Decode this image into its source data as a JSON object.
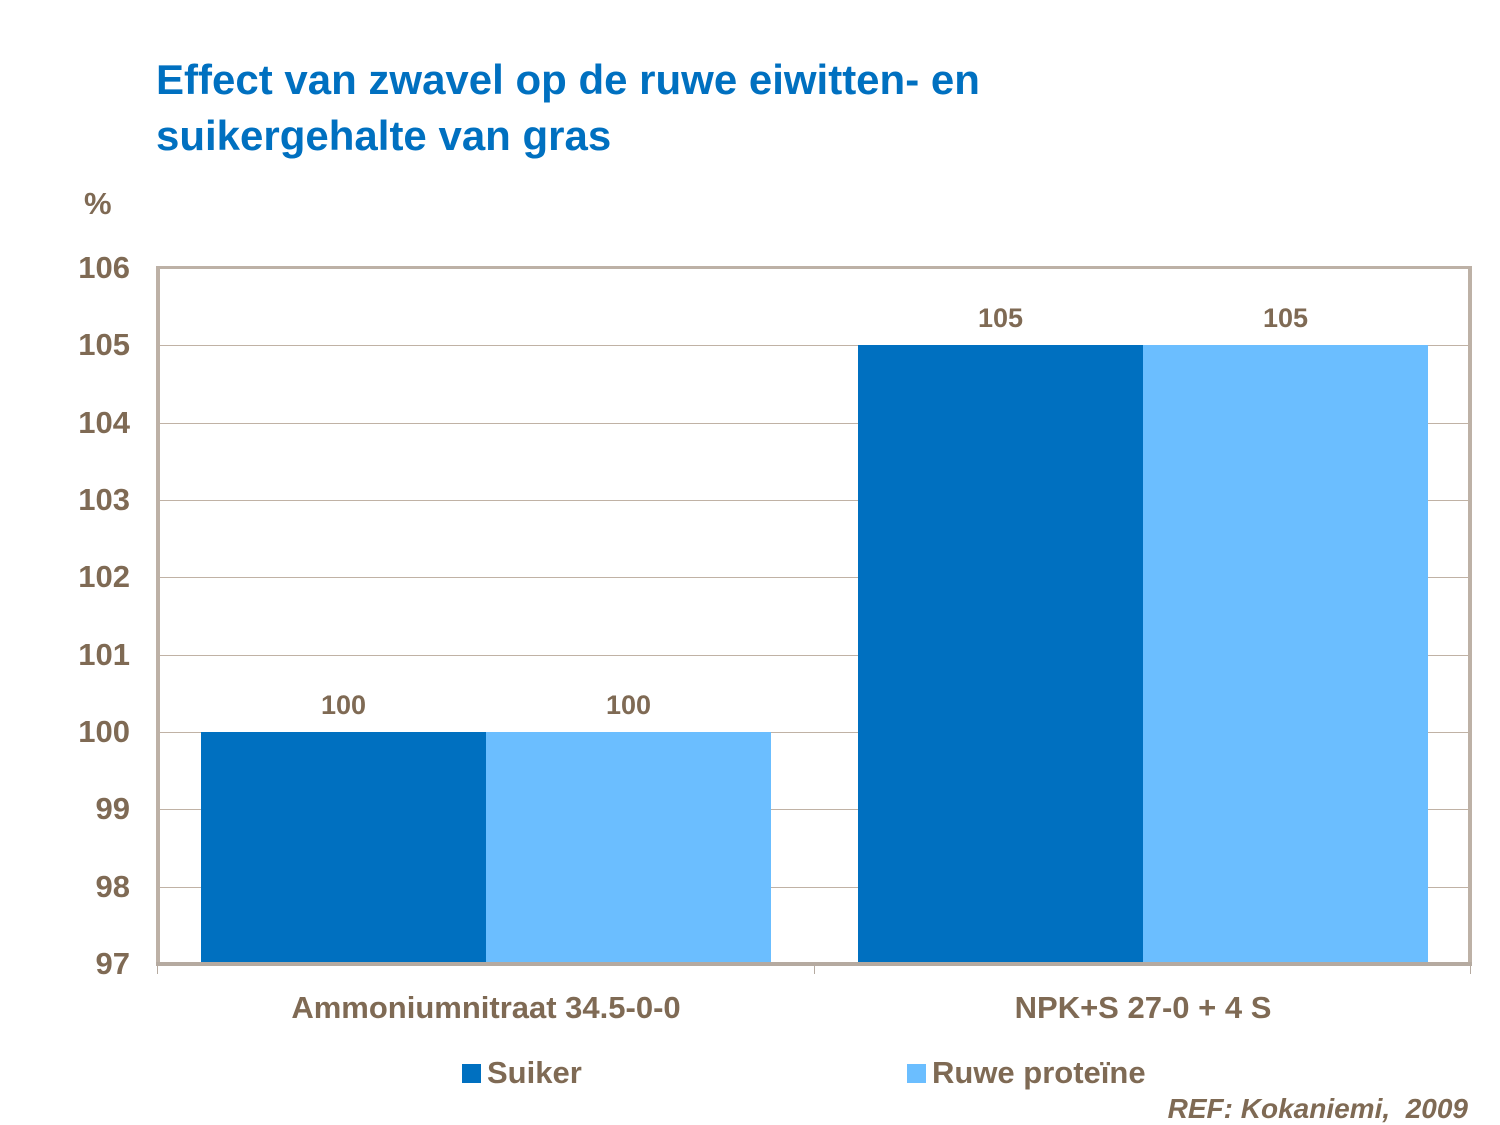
{
  "title": {
    "line1": "Effect van zwavel op de ruwe eiwitten- en",
    "line2": "suikergehalte van gras"
  },
  "y_unit": "%",
  "colors": {
    "suiker": "#0070c0",
    "ruwe_proteine": "#6bbeff",
    "text": "#7f6a54",
    "title": "#0070c0",
    "axis": "#b5aaa0"
  },
  "legend": [
    {
      "label": "Suiker",
      "color": "#0070c0"
    },
    {
      "label": "Ruwe proteïne",
      "color": "#6bbeff"
    }
  ],
  "reference": "REF: Kokaniemi,  2009",
  "chart_data": {
    "type": "bar",
    "title": "Effect van zwavel op de ruwe eiwitten- en suikergehalte van gras",
    "xlabel": "",
    "ylabel": "%",
    "categories": [
      "Ammoniumnitraat 34.5-0-0",
      "NPK+S 27-0 + 4 S"
    ],
    "series": [
      {
        "name": "Suiker",
        "values": [
          100,
          105
        ]
      },
      {
        "name": "Ruwe proteïne",
        "values": [
          100,
          105
        ]
      }
    ],
    "data_labels": [
      [
        "100",
        "100"
      ],
      [
        "105",
        "105"
      ]
    ],
    "ylim": [
      97,
      106
    ],
    "yticks": [
      "106",
      "105",
      "104",
      "103",
      "102",
      "101",
      "100",
      "99",
      "98",
      "97"
    ],
    "grid": true,
    "legend_position": "bottom",
    "annotations": [
      "REF: Kokaniemi,  2009"
    ]
  }
}
